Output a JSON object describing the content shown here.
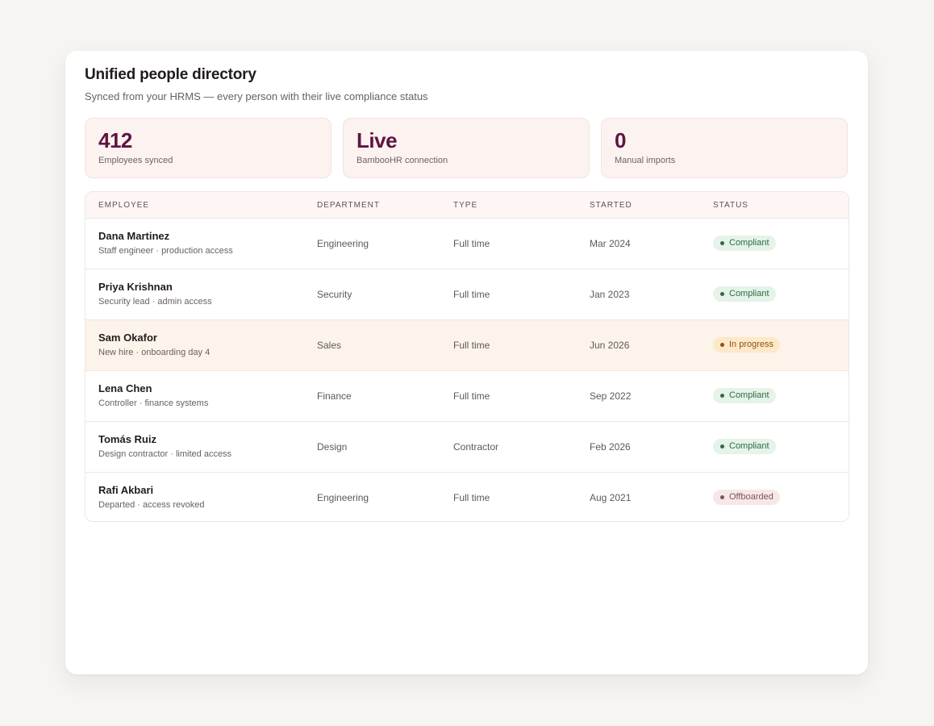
{
  "header": {
    "title": "Unified people directory",
    "subtitle": "Synced from your HRMS — every person with their live compliance status"
  },
  "stats": [
    {
      "value": "412",
      "label": "Employees synced"
    },
    {
      "value": "Live",
      "label": "BambooHR connection"
    },
    {
      "value": "0",
      "label": "Manual imports"
    }
  ],
  "table": {
    "columns": [
      "EMPLOYEE",
      "DEPARTMENT",
      "TYPE",
      "STARTED",
      "STATUS"
    ],
    "rows": [
      {
        "name": "Dana Martinez",
        "desc": "Staff engineer · production access",
        "department": "Engineering",
        "type": "Full time",
        "started": "Mar 2024",
        "status": "Compliant"
      },
      {
        "name": "Priya Krishnan",
        "desc": "Security lead · admin access",
        "department": "Security",
        "type": "Full time",
        "started": "Jan 2023",
        "status": "Compliant"
      },
      {
        "name": "Sam Okafor",
        "desc": "New hire · onboarding day 4",
        "department": "Sales",
        "type": "Full time",
        "started": "Jun 2026",
        "status": "In progress"
      },
      {
        "name": "Lena Chen",
        "desc": "Controller · finance systems",
        "department": "Finance",
        "type": "Full time",
        "started": "Sep 2022",
        "status": "Compliant"
      },
      {
        "name": "Tomás Ruiz",
        "desc": "Design contractor · limited access",
        "department": "Design",
        "type": "Contractor",
        "started": "Feb 2026",
        "status": "Compliant"
      },
      {
        "name": "Rafi Akbari",
        "desc": "Departed · access revoked",
        "department": "Engineering",
        "type": "Full time",
        "started": "Aug 2021",
        "status": "Offboarded"
      }
    ]
  },
  "colors": {
    "accent": "#5e1440",
    "compliant": "#2e6b45",
    "in_progress": "#8b5410",
    "offboarded": "#7d5558",
    "highlight_row": "#fcf4ea"
  }
}
